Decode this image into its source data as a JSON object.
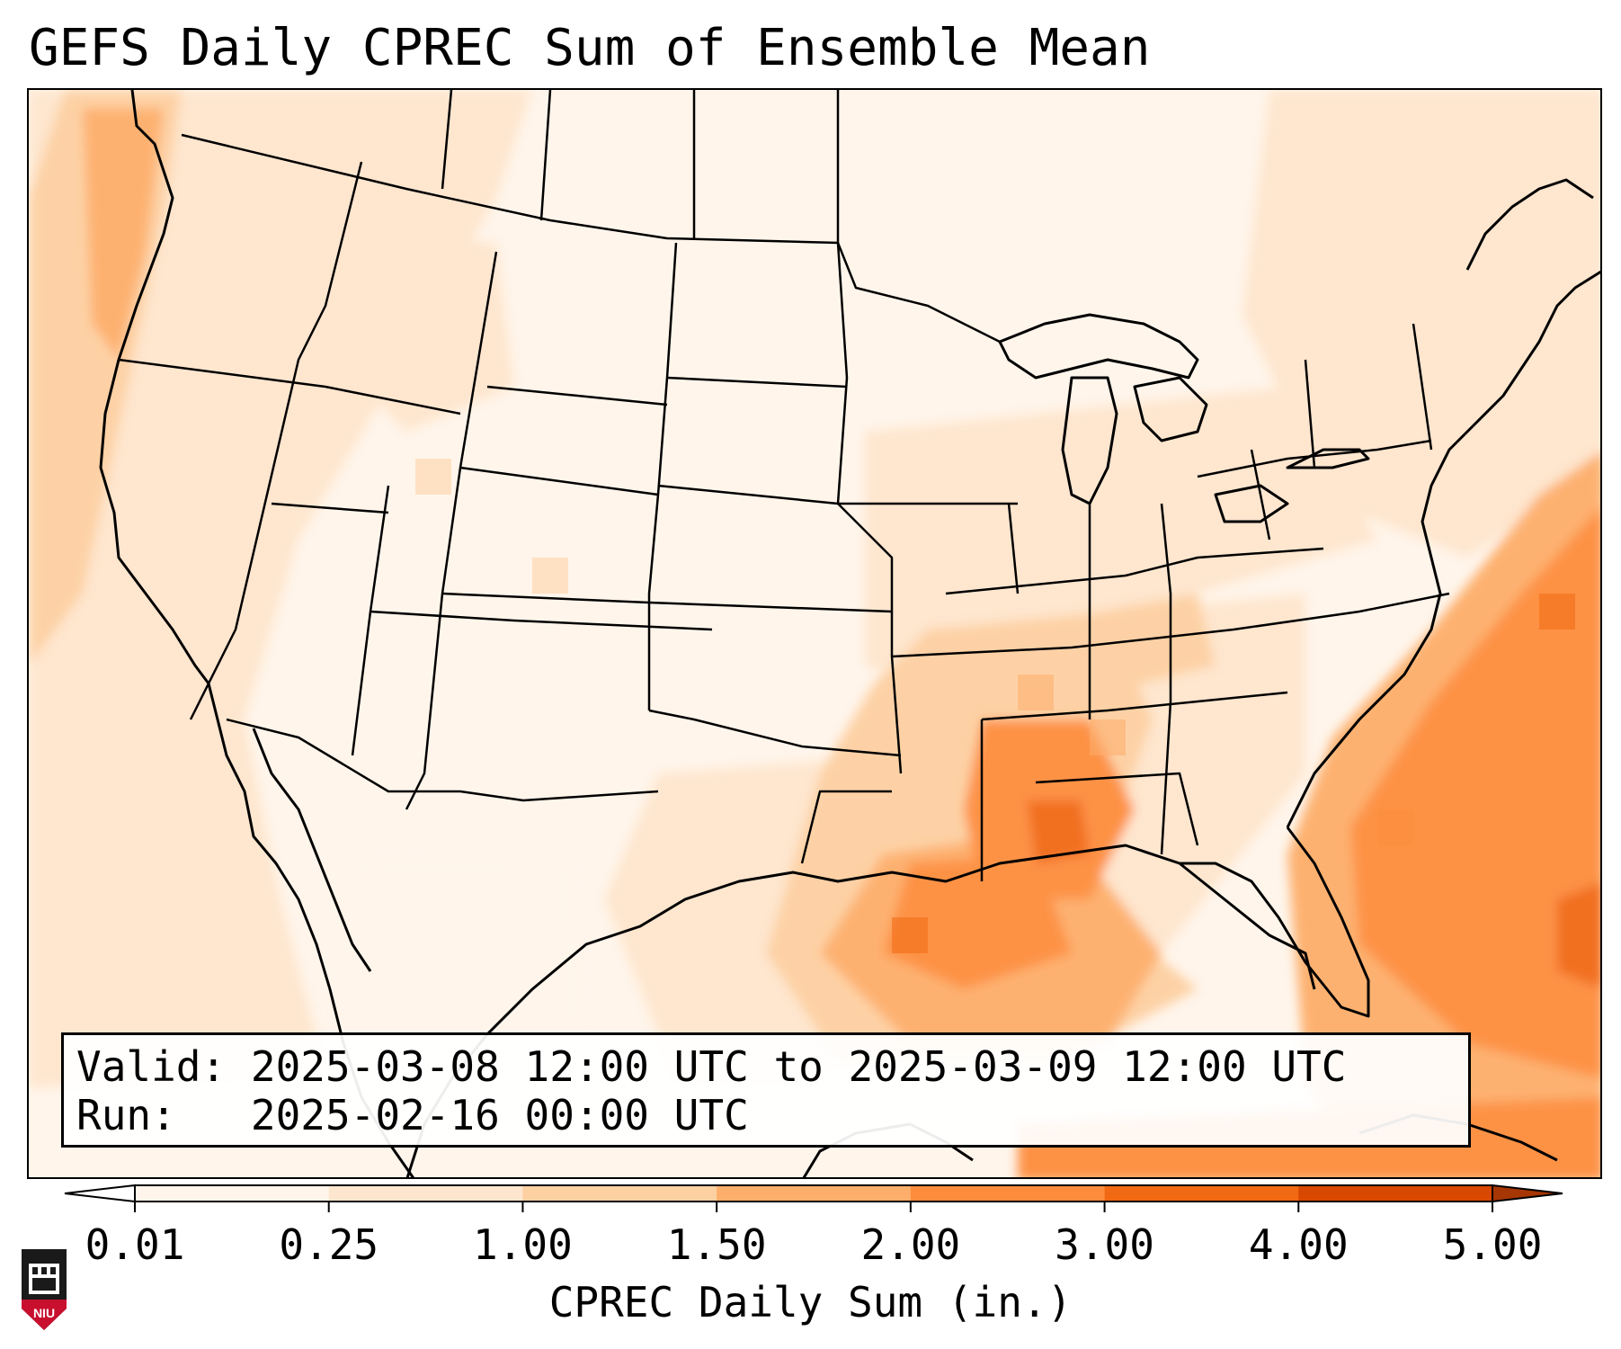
{
  "title": "GEFS Daily CPREC Sum of Ensemble Mean",
  "info": {
    "valid_label": "Valid:",
    "valid_value": "2025-03-08 12:00 UTC to 2025-03-09 12:00 UTC",
    "run_label": "Run:",
    "run_value": "2025-02-16 00:00 UTC"
  },
  "colorbar": {
    "label": "CPREC Daily Sum (in.)",
    "ticks": [
      "0.01",
      "0.25",
      "1.00",
      "1.50",
      "2.00",
      "3.00",
      "4.00",
      "5.00"
    ],
    "colors": [
      "#fff5eb",
      "#fee6ce",
      "#fdd0a2",
      "#fdae6b",
      "#fd8d3c",
      "#f16913",
      "#d94801",
      "#a63603"
    ]
  },
  "logo": {
    "text": "NIU",
    "color": "#c8102e"
  }
}
